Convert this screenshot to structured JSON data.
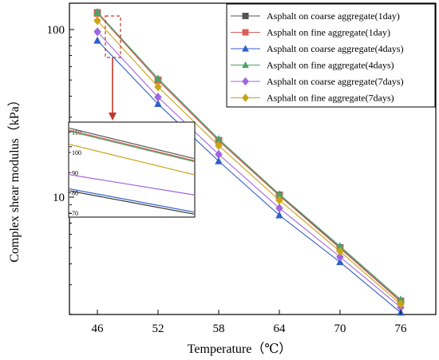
{
  "chart_data": {
    "type": "line",
    "xlabel": "Temperature（℃）",
    "ylabel": "Complex shear modulus（kPa）",
    "y_scale": "log",
    "x_ticks": [
      46,
      52,
      58,
      64,
      70,
      76
    ],
    "y_ticks": [
      10,
      100
    ],
    "x": [
      46,
      52,
      58,
      64,
      70,
      76
    ],
    "legend_position": "top-right",
    "series": [
      {
        "name": "Asphalt on coarse aggregate(1day)",
        "color": "#555555",
        "marker": "square",
        "values": [
          126,
          50,
          21.8,
          10.3,
          5.0,
          2.4
        ]
      },
      {
        "name": "Asphalt on fine aggregate(1day)",
        "color": "#d9605a",
        "marker": "square",
        "values": [
          125,
          49.8,
          21.7,
          10.2,
          4.95,
          2.38
        ]
      },
      {
        "name": "Asphalt on coarse aggregate(4days)",
        "color": "#2f5fc9",
        "marker": "triangle",
        "values": [
          86,
          36,
          16.4,
          7.8,
          4.1,
          2.05
        ]
      },
      {
        "name": "Asphalt on fine aggregate(4days)",
        "color": "#4aa366",
        "marker": "triangle",
        "values": [
          127,
          51,
          22.2,
          10.4,
          5.1,
          2.45
        ]
      },
      {
        "name": "Asphalt on coarse aggregate(7days)",
        "color": "#a065e0",
        "marker": "diamond",
        "values": [
          97,
          39.5,
          18,
          8.6,
          4.4,
          2.2
        ]
      },
      {
        "name": "Asphalt on fine aggregate(7days)",
        "color": "#c9a515",
        "marker": "diamond",
        "values": [
          113,
          45.5,
          20.3,
          9.6,
          4.75,
          2.3
        ]
      }
    ],
    "inset": {
      "y_ticks": [
        70,
        80,
        90,
        100,
        110
      ],
      "ylim": [
        68,
        115
      ],
      "lines": [
        {
          "color": "#555555",
          "start": 112,
          "end": 97
        },
        {
          "color": "#d9605a",
          "start": 111,
          "end": 96
        },
        {
          "color": "#4aa366",
          "start": 110.5,
          "end": 95.5
        },
        {
          "color": "#c9a515",
          "start": 104,
          "end": 89
        },
        {
          "color": "#a065e0",
          "start": 89,
          "end": 79
        },
        {
          "color": "#2f5fc9",
          "start": 82,
          "end": 70.5
        },
        {
          "color": "#333333",
          "start": 81,
          "end": 69.5
        }
      ]
    }
  }
}
